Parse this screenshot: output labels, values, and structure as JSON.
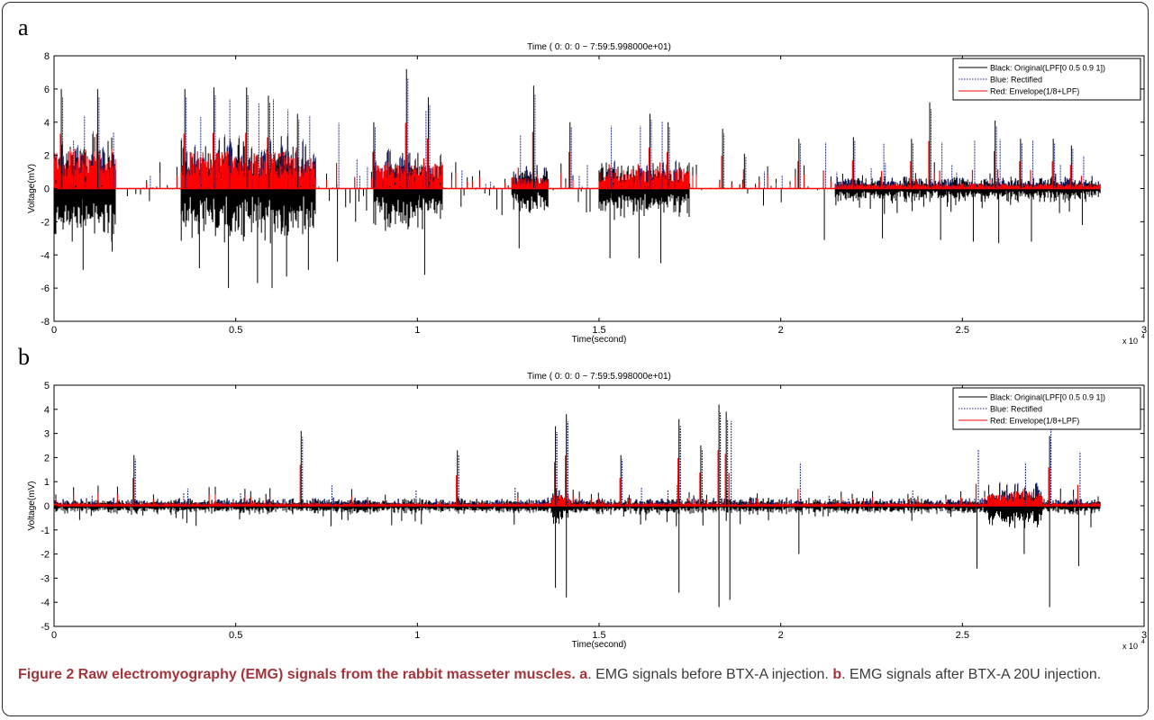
{
  "panels": [
    {
      "letter": "a"
    },
    {
      "letter": "b"
    }
  ],
  "caption": {
    "figure_label": "Figure 2 Raw electromyography (EMG) signals from the rabbit masseter muscles.",
    "a_label": "a",
    "a_text": ". EMG signals before BTX-A injection.",
    "b_label": "b",
    "b_text": ". EMG signals after BTX-A 20U injection."
  },
  "colors": {
    "original": "#000000",
    "rectified": "#1f2a8a",
    "envelope": "#ff0000"
  },
  "chart_data": [
    {
      "type": "line",
      "title": "Time ( 0: 0: 0 ~ 7:59:5.998000e+01)",
      "xlabel": "Time(second)",
      "ylabel": "Voltage(mV)",
      "x_exponent": "x 10",
      "x_exponent_power": "4",
      "xlim": [
        0,
        3
      ],
      "ylim": [
        -8,
        8
      ],
      "xticks": [
        "0",
        "0.5",
        "1",
        "1.5",
        "2",
        "2.5",
        "3"
      ],
      "yticks": [
        "-8",
        "-6",
        "-4",
        "-2",
        "0",
        "2",
        "4",
        "6",
        "8"
      ],
      "legend": "top-right",
      "series": [
        {
          "name": "Black: Original(LPF[0 0.5 0.9 1])",
          "style": "solid",
          "color": "#000000"
        },
        {
          "name": "Blue: Rectified",
          "style": "dotted",
          "color": "#1f2a8a"
        },
        {
          "name": "Red: Envelope(1/8+LPF)",
          "style": "solid",
          "color": "#ff0000"
        }
      ],
      "signal_end_x": 2.88,
      "activity_bursts": [
        {
          "x_start": 0.0,
          "x_end": 0.17,
          "amp": 3.5,
          "env": 2.4
        },
        {
          "x_start": 0.35,
          "x_end": 0.66,
          "amp": 3.3,
          "env": 2.3
        },
        {
          "x_start": 0.6,
          "x_end": 0.72,
          "amp": 3.0,
          "env": 2.0
        },
        {
          "x_start": 0.88,
          "x_end": 1.07,
          "amp": 2.6,
          "env": 1.6
        },
        {
          "x_start": 1.5,
          "x_end": 1.75,
          "amp": 1.8,
          "env": 1.2
        },
        {
          "x_start": 1.26,
          "x_end": 1.36,
          "amp": 1.5,
          "env": 0.7
        },
        {
          "x_start": 2.15,
          "x_end": 2.88,
          "amp": 0.8,
          "env": 0.3
        }
      ],
      "spikes": [
        {
          "x": 0.02,
          "y": 6.0
        },
        {
          "x": 0.05,
          "y": -3.2
        },
        {
          "x": 0.08,
          "y": -4.9
        },
        {
          "x": 0.12,
          "y": 6.0
        },
        {
          "x": 0.16,
          "y": -3.8
        },
        {
          "x": 0.36,
          "y": 6.0
        },
        {
          "x": 0.4,
          "y": -4.8
        },
        {
          "x": 0.44,
          "y": 6.1
        },
        {
          "x": 0.48,
          "y": -6.0
        },
        {
          "x": 0.53,
          "y": 6.1
        },
        {
          "x": 0.56,
          "y": -5.7
        },
        {
          "x": 0.59,
          "y": 5.6
        },
        {
          "x": 0.6,
          "y": -6.0
        },
        {
          "x": 0.64,
          "y": -5.3
        },
        {
          "x": 0.67,
          "y": 4.5
        },
        {
          "x": 0.7,
          "y": -4.9
        },
        {
          "x": 0.78,
          "y": -4.4
        },
        {
          "x": 0.83,
          "y": -2.0
        },
        {
          "x": 0.88,
          "y": 4.0
        },
        {
          "x": 0.97,
          "y": 7.2
        },
        {
          "x": 1.02,
          "y": -5.2
        },
        {
          "x": 1.03,
          "y": 5.5
        },
        {
          "x": 1.28,
          "y": -3.6
        },
        {
          "x": 1.32,
          "y": 6.2
        },
        {
          "x": 1.42,
          "y": 4.0
        },
        {
          "x": 1.53,
          "y": -4.2
        },
        {
          "x": 1.61,
          "y": -4.2
        },
        {
          "x": 1.64,
          "y": 4.5
        },
        {
          "x": 1.67,
          "y": -4.5
        },
        {
          "x": 1.69,
          "y": 4.0
        },
        {
          "x": 1.84,
          "y": 3.6
        },
        {
          "x": 1.9,
          "y": 2.1
        },
        {
          "x": 2.05,
          "y": 3.0
        },
        {
          "x": 2.12,
          "y": -3.1
        },
        {
          "x": 2.2,
          "y": 3.1
        },
        {
          "x": 2.28,
          "y": -3.0
        },
        {
          "x": 2.36,
          "y": 3.0
        },
        {
          "x": 2.41,
          "y": 5.2
        },
        {
          "x": 2.44,
          "y": -3.1
        },
        {
          "x": 2.53,
          "y": -3.2
        },
        {
          "x": 2.59,
          "y": 4.1
        },
        {
          "x": 2.6,
          "y": -3.3
        },
        {
          "x": 2.66,
          "y": 3.0
        },
        {
          "x": 2.69,
          "y": -3.2
        },
        {
          "x": 2.75,
          "y": 3.0
        },
        {
          "x": 2.8,
          "y": 2.6
        },
        {
          "x": 2.83,
          "y": -2.2
        }
      ]
    },
    {
      "type": "line",
      "title": "Time ( 0: 0: 0 ~ 7:59:5.998000e+01)",
      "xlabel": "Time(second)",
      "ylabel": "Voltage(mV)",
      "x_exponent": "x 10",
      "x_exponent_power": "4",
      "xlim": [
        0,
        3
      ],
      "ylim": [
        -5,
        5
      ],
      "xticks": [
        "0",
        "0.5",
        "1",
        "1.5",
        "2",
        "2.5",
        "3"
      ],
      "yticks": [
        "-5",
        "-4",
        "-3",
        "-2",
        "-1",
        "0",
        "1",
        "2",
        "3",
        "4",
        "5"
      ],
      "legend": "top-right",
      "series": [
        {
          "name": "Black: Original(LPF[0 0.5 0.9 1])",
          "style": "solid",
          "color": "#000000"
        },
        {
          "name": "Blue: Rectified",
          "style": "dotted",
          "color": "#1f2a8a"
        },
        {
          "name": "Red: Envelope(1/8+LPF)",
          "style": "solid",
          "color": "#ff0000"
        }
      ],
      "signal_end_x": 2.88,
      "activity_bursts": [
        {
          "x_start": 0.0,
          "x_end": 2.88,
          "amp": 0.35,
          "env": 0.12
        },
        {
          "x_start": 1.37,
          "x_end": 1.42,
          "amp": 0.8,
          "env": 0.5
        },
        {
          "x_start": 2.57,
          "x_end": 2.72,
          "amp": 1.0,
          "env": 0.6
        }
      ],
      "spikes": [
        {
          "x": 0.22,
          "y": 2.1
        },
        {
          "x": 0.68,
          "y": 3.1
        },
        {
          "x": 1.11,
          "y": 2.3
        },
        {
          "x": 1.38,
          "y": 3.3
        },
        {
          "x": 1.38,
          "y": -3.4
        },
        {
          "x": 1.41,
          "y": 3.8
        },
        {
          "x": 1.41,
          "y": -3.8
        },
        {
          "x": 1.56,
          "y": 2.1
        },
        {
          "x": 1.72,
          "y": 3.6
        },
        {
          "x": 1.72,
          "y": -3.6
        },
        {
          "x": 1.78,
          "y": 2.5
        },
        {
          "x": 1.83,
          "y": 4.2
        },
        {
          "x": 1.83,
          "y": -4.2
        },
        {
          "x": 1.85,
          "y": 3.9
        },
        {
          "x": 1.86,
          "y": -3.9
        },
        {
          "x": 2.05,
          "y": -2.0
        },
        {
          "x": 2.54,
          "y": -2.6
        },
        {
          "x": 2.67,
          "y": -2.0
        },
        {
          "x": 2.74,
          "y": 2.9
        },
        {
          "x": 2.74,
          "y": -4.2
        },
        {
          "x": 2.82,
          "y": -2.5
        }
      ]
    }
  ]
}
